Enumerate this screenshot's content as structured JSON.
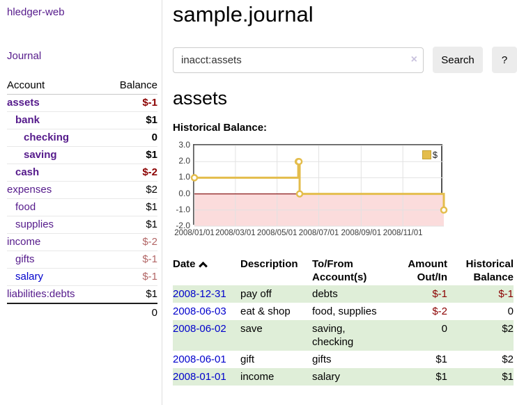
{
  "app": {
    "brand": "hledger-web"
  },
  "nav": {
    "journal": "Journal"
  },
  "colors": {
    "accent_purple": "#551a8b",
    "link_blue": "#0000cc",
    "negative_strong": "#8b0000",
    "negative_soft": "#b26666",
    "row_stripe_green": "#dfeed8",
    "chart_line_gold": "#e4bd4c",
    "chart_negative_fill_pink": "#fbdcdc",
    "chart_zero_line_red": "#8b1a1a"
  },
  "icons": {
    "sort_ascending": "chevron-up",
    "clear_search": "×"
  },
  "sidebar": {
    "header": {
      "account": "Account",
      "balance": "Balance"
    },
    "accounts": [
      {
        "name": "assets",
        "balance": "$-1",
        "indent": 1,
        "bold": true
      },
      {
        "name": "bank",
        "balance": "$1",
        "indent": 2,
        "bold": true
      },
      {
        "name": "checking",
        "balance": "0",
        "indent": 3,
        "bold": true
      },
      {
        "name": "saving",
        "balance": "$1",
        "indent": 3,
        "bold": true
      },
      {
        "name": "cash",
        "balance": "$-2",
        "indent": 2,
        "bold": true
      },
      {
        "name": "expenses",
        "balance": "$2",
        "indent": 1,
        "bold": false
      },
      {
        "name": "food",
        "balance": "$1",
        "indent": 2,
        "bold": false
      },
      {
        "name": "supplies",
        "balance": "$1",
        "indent": 2,
        "bold": false
      },
      {
        "name": "income",
        "balance": "$-2",
        "indent": 1,
        "bold": false
      },
      {
        "name": "gifts",
        "balance": "$-1",
        "indent": 2,
        "bold": false
      },
      {
        "name": "salary",
        "balance": "$-1",
        "indent": 2,
        "bold": false,
        "unvisited": true
      },
      {
        "name": "liabilities:debts",
        "balance": "$1",
        "indent": 1,
        "bold": false
      }
    ],
    "total": "0"
  },
  "header": {
    "title": "sample.journal"
  },
  "search": {
    "value": "inacct:assets",
    "clear_icon": "×",
    "button": "Search",
    "help_button": "?"
  },
  "account_page": {
    "heading": "assets",
    "chart_label": "Historical Balance:"
  },
  "chart_data": {
    "type": "line",
    "title": "Historical Balance",
    "series": [
      {
        "name": "$",
        "step": true,
        "points": [
          [
            "2008-01-01",
            1
          ],
          [
            "2008-06-01",
            2
          ],
          [
            "2008-06-02",
            2
          ],
          [
            "2008-06-03",
            0
          ],
          [
            "2008-12-31",
            -1
          ]
        ]
      }
    ],
    "xlim": [
      "2008-01-01",
      "2008-12-31"
    ],
    "ylim": [
      -2,
      3
    ],
    "x_ticks": [
      "2008/01/01",
      "2008/03/01",
      "2008/05/01",
      "2008/07/01",
      "2008/09/01",
      "2008/11/01"
    ],
    "y_ticks": [
      "3.0",
      "2.0",
      "1.0",
      "0.0",
      "-1.0",
      "-2.0"
    ],
    "grid": true,
    "legend_position": "top-right",
    "legend_label": "$"
  },
  "transactions": {
    "headers": {
      "date": "Date",
      "description": "Description",
      "accounts": "To/From\nAccount(s)",
      "amount": "Amount\nOut/In",
      "balance": "Historical\nBalance"
    },
    "rows": [
      {
        "date": "2008-12-31",
        "description": "pay off",
        "accounts": "debts",
        "amount": "$-1",
        "balance": "$-1"
      },
      {
        "date": "2008-06-03",
        "description": "eat & shop",
        "accounts": "food, supplies",
        "amount": "$-2",
        "balance": "0"
      },
      {
        "date": "2008-06-02",
        "description": "save",
        "accounts": "saving,\nchecking",
        "amount": "0",
        "balance": "$2"
      },
      {
        "date": "2008-06-01",
        "description": "gift",
        "accounts": "gifts",
        "amount": "$1",
        "balance": "$2"
      },
      {
        "date": "2008-01-01",
        "description": "income",
        "accounts": "salary",
        "amount": "$1",
        "balance": "$1"
      }
    ]
  }
}
